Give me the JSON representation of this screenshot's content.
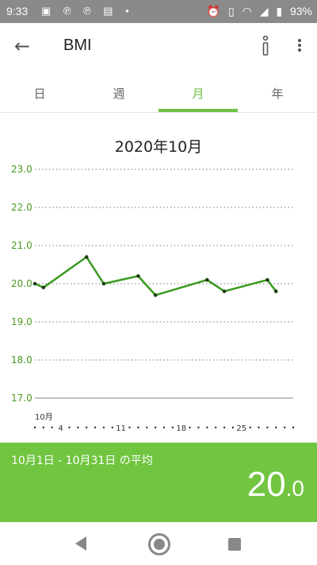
{
  "status_bar": {
    "time": "9:33",
    "left_icons": "▣ ℗ ℗ ▤ •",
    "right_icons": [
      "alarm-icon",
      "vibrate-icon",
      "wifi-icon",
      "signal-icon",
      "battery-icon"
    ],
    "battery": "93%"
  },
  "app_bar": {
    "title": "BMI"
  },
  "tabs": [
    {
      "label": "日"
    },
    {
      "label": "週"
    },
    {
      "label": "月",
      "active": true
    },
    {
      "label": "年"
    }
  ],
  "chart_header": "2020年10月",
  "chart_data": {
    "type": "line",
    "title": "2020年10月",
    "ylim": [
      17.0,
      23.0
    ],
    "y_ticks": [
      "23.0",
      "22.0",
      "21.0",
      "20.0",
      "19.0",
      "18.0",
      "17.0"
    ],
    "x_month_label": "10月",
    "x_ticks": [
      {
        "day": 4,
        "label": "4"
      },
      {
        "day": 11,
        "label": "11"
      },
      {
        "day": 18,
        "label": "18"
      },
      {
        "day": 25,
        "label": "25"
      }
    ],
    "x_range_days": [
      1,
      31
    ],
    "series": [
      {
        "color": "#3a9a20",
        "points": [
          {
            "day": 1,
            "value": 20.0
          },
          {
            "day": 2,
            "value": 19.9
          },
          {
            "day": 7,
            "value": 20.7
          },
          {
            "day": 9,
            "value": 20.0
          },
          {
            "day": 13,
            "value": 20.2
          },
          {
            "day": 15,
            "value": 19.7
          },
          {
            "day": 21,
            "value": 20.1
          },
          {
            "day": 23,
            "value": 19.8
          },
          {
            "day": 28,
            "value": 20.1
          },
          {
            "day": 29,
            "value": 19.8
          }
        ]
      }
    ]
  },
  "average": {
    "label": "10月1日 - 10月31日 の平均",
    "value_int": "20",
    "value_dec": ".0"
  },
  "colors": {
    "accent": "#71c540",
    "line": "#3a9a20",
    "axis_text": "#4a9a1e"
  }
}
